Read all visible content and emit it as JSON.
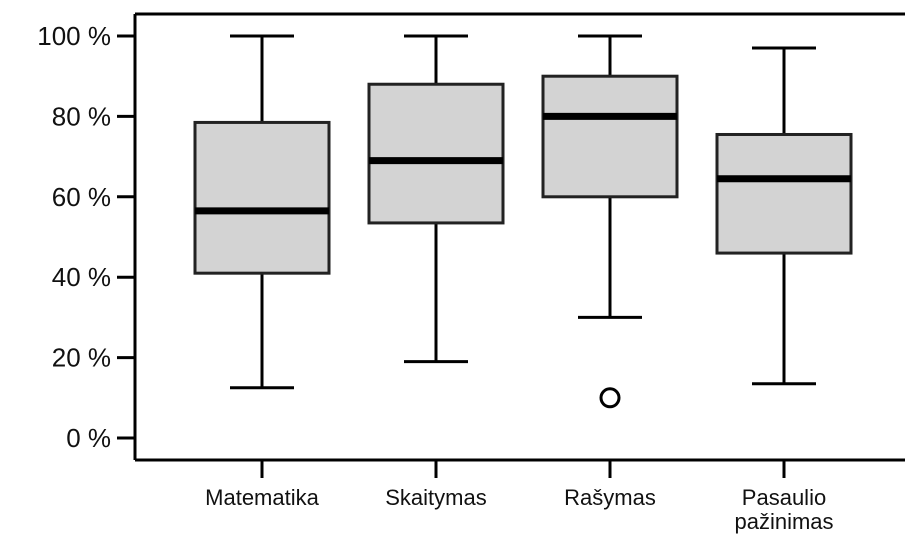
{
  "chart_data": {
    "type": "boxplot",
    "title": "",
    "xlabel": "",
    "ylabel": "",
    "ylim": [
      0,
      100
    ],
    "y_unit_suffix": " %",
    "yticks": [
      {
        "value": 0,
        "label": "0 %"
      },
      {
        "value": 20,
        "label": "20 %"
      },
      {
        "value": 40,
        "label": "40 %"
      },
      {
        "value": 60,
        "label": "60 %"
      },
      {
        "value": 80,
        "label": "80 %"
      },
      {
        "value": 100,
        "label": "100 %"
      }
    ],
    "grid": false,
    "legend": "none",
    "box_fill": "#d3d3d3",
    "line_color": "#000000",
    "categories": [
      {
        "label_lines": [
          "Matematika"
        ],
        "min": 12.5,
        "q1": 41,
        "median": 56.5,
        "q3": 78.5,
        "max": 100,
        "outliers": []
      },
      {
        "label_lines": [
          "Skaitymas"
        ],
        "min": 19,
        "q1": 53.5,
        "median": 69,
        "q3": 88,
        "max": 100,
        "outliers": []
      },
      {
        "label_lines": [
          "Rašymas"
        ],
        "min": 30,
        "q1": 60,
        "median": 80,
        "q3": 90,
        "max": 100,
        "outliers": [
          10
        ]
      },
      {
        "label_lines": [
          "Pasaulio",
          "pažinimas"
        ],
        "min": 13.5,
        "q1": 46,
        "median": 64.5,
        "q3": 75.5,
        "max": 97,
        "outliers": []
      }
    ]
  }
}
